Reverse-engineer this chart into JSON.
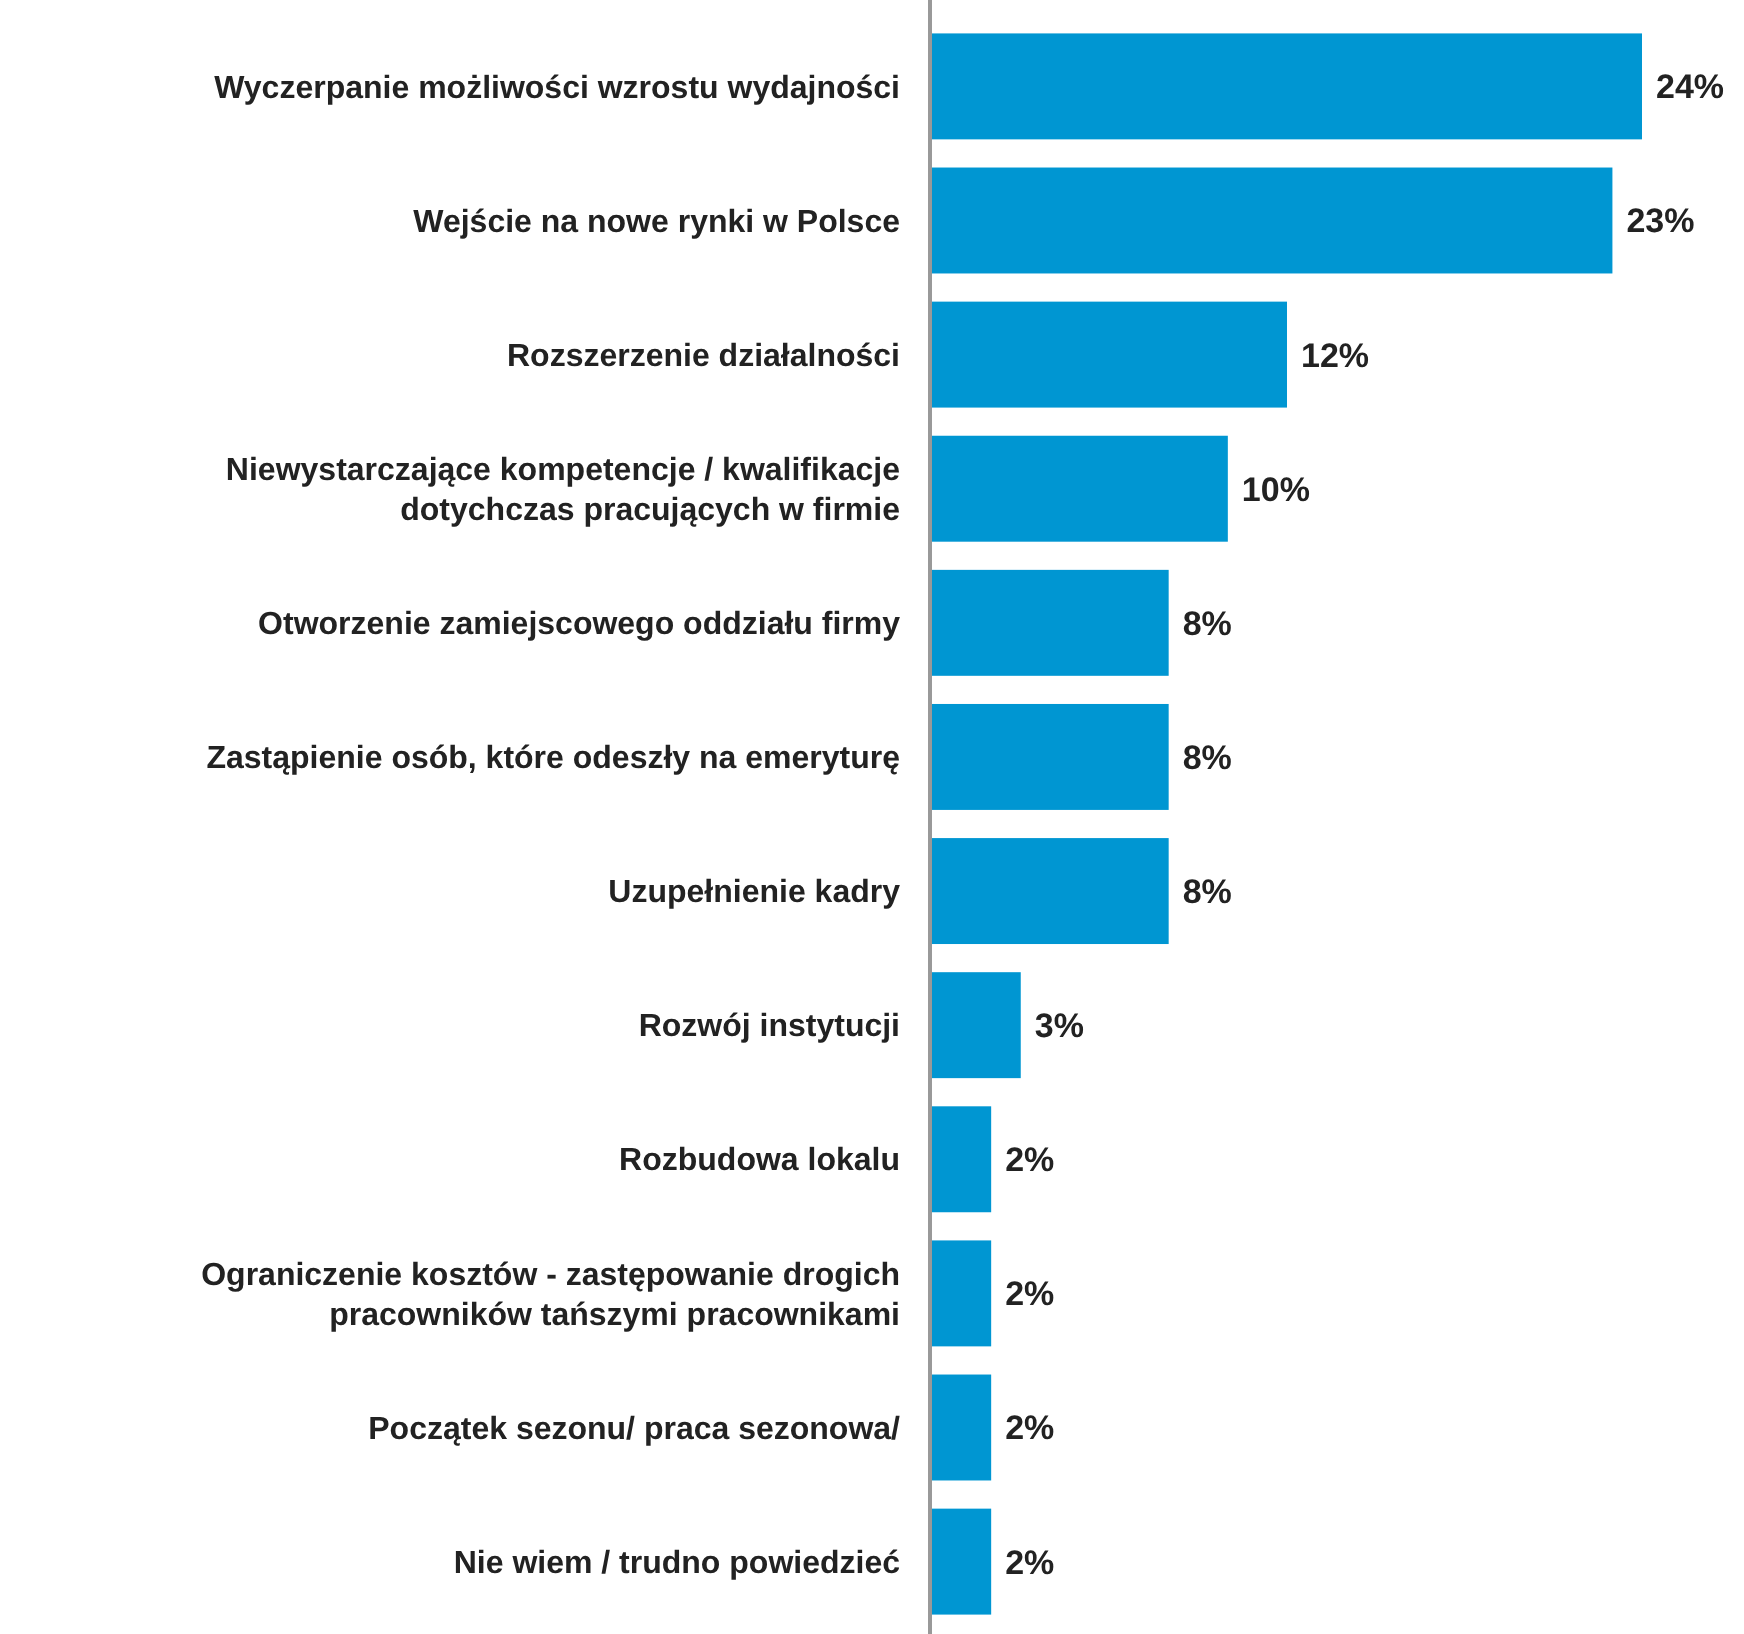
{
  "chart_data": {
    "type": "bar",
    "orientation": "horizontal",
    "value_labels": [
      "24%",
      "23%",
      "12%",
      "10%",
      "8%",
      "8%",
      "8%",
      "3%",
      "2%",
      "2%",
      "2%",
      "2%"
    ],
    "categories": [
      "Wyczerpanie możliwości wzrostu wydajności",
      "Wejście na nowe rynki w Polsce",
      "Rozszerzenie działalności",
      "Niewystarczające kompetencje / kwalifikacje dotychczas pracujących w firmie",
      "Otworzenie zamiejscowego oddziału firmy",
      "Zastąpienie osób, które odeszły na emeryturę",
      "Uzupełnienie kadry",
      "Rozwój instytucji",
      "Rozbudowa lokalu",
      "Ograniczenie kosztów - zastępowanie drogich pracowników tańszymi pracownikami",
      "Początek sezonu/ praca sezonowa/",
      "Nie wiem / trudno powiedzieć"
    ],
    "values": [
      24,
      23,
      12,
      10,
      8,
      8,
      8,
      3,
      2,
      2,
      2,
      2
    ],
    "color": "#0096d2"
  }
}
